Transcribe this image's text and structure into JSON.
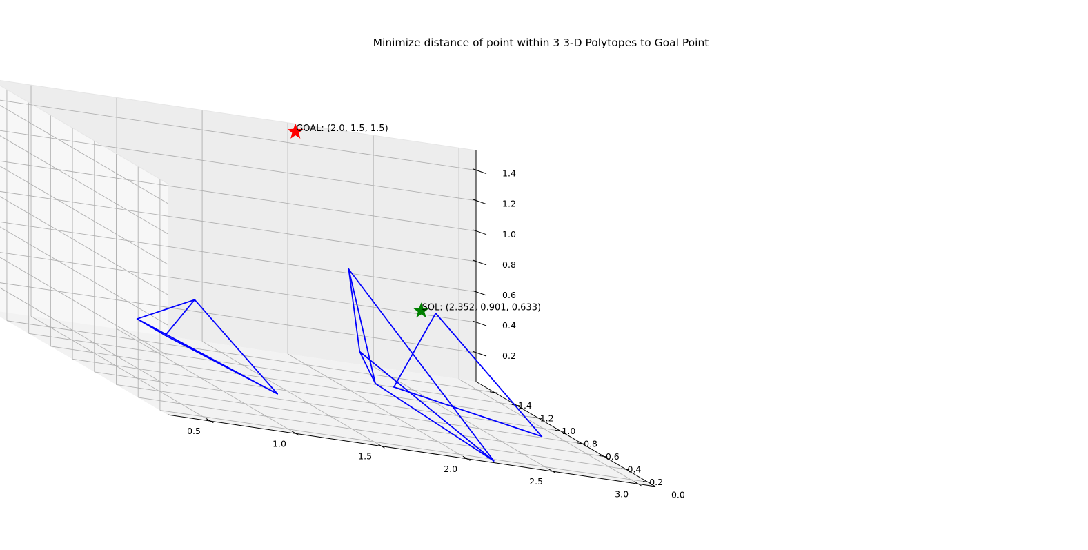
{
  "chart_data": {
    "type": "3d-line",
    "title": "Minimize distance of point within 3 3-D Polytopes to Goal Point",
    "xlabel": "",
    "ylabel": "",
    "zlabel": "",
    "grid": true,
    "xlim": [
      0.25,
      3.1
    ],
    "ylim": [
      -0.07,
      1.57
    ],
    "zlim": [
      0.01,
      1.53
    ],
    "x_ticks": [
      "0.5",
      "1.0",
      "1.5",
      "2.0",
      "2.5",
      "3.0"
    ],
    "y_ticks": [
      "0.0",
      "0.2",
      "0.4",
      "0.6",
      "0.8",
      "1.0",
      "1.2",
      "1.4"
    ],
    "z_ticks": [
      "0.2",
      "0.4",
      "0.6",
      "0.8",
      "1.0",
      "1.2",
      "1.4"
    ],
    "colors": {
      "polytope": "#0000ff",
      "goal": "#ff0000",
      "solution": "#008000",
      "pane_light": "#f7f7f7",
      "pane_mid": "#f2f2f2",
      "pane_dark": "#ededed",
      "grid": "#b0b0b0"
    },
    "polytopes": [
      {
        "name": "",
        "vertices": [
          [
            0.5,
            0.6,
            0.4
          ],
          [
            1.0,
            0.1,
            0.2
          ],
          [
            0.9,
            0.7,
            0.55
          ],
          [
            0.6,
            0.5,
            0.35
          ]
        ],
        "edges": [
          [
            0,
            1
          ],
          [
            0,
            2
          ],
          [
            0,
            3
          ],
          [
            1,
            2
          ],
          [
            1,
            3
          ],
          [
            2,
            3
          ]
        ]
      },
      {
        "name": "",
        "vertices": [
          [
            1.7,
            0.3,
            0.3
          ],
          [
            1.8,
            0.7,
            0.9
          ],
          [
            2.2,
            0.0,
            0.0
          ],
          [
            1.8,
            0.6,
            0.4
          ]
        ],
        "edges": [
          [
            0,
            1
          ],
          [
            0,
            2
          ],
          [
            0,
            3
          ],
          [
            1,
            2
          ],
          [
            1,
            3
          ],
          [
            2,
            3
          ]
        ]
      },
      {
        "name": "",
        "vertices": [
          [
            2.0,
            0.6,
            0.2
          ],
          [
            2.8,
            0.5,
            0.05
          ],
          [
            2.5,
            1.0,
            0.6
          ]
        ],
        "edges": [
          [
            0,
            1
          ],
          [
            0,
            2
          ],
          [
            1,
            2
          ]
        ]
      }
    ],
    "goal": {
      "point": [
        2.0,
        1.5,
        1.5
      ],
      "marker": "star",
      "label": "GOAL: (2.0, 1.5, 1.5)"
    },
    "solution": {
      "point": [
        2.352,
        0.901,
        0.633
      ],
      "marker": "star",
      "label": "SOL: (2.352, 0.901, 0.633)"
    }
  }
}
